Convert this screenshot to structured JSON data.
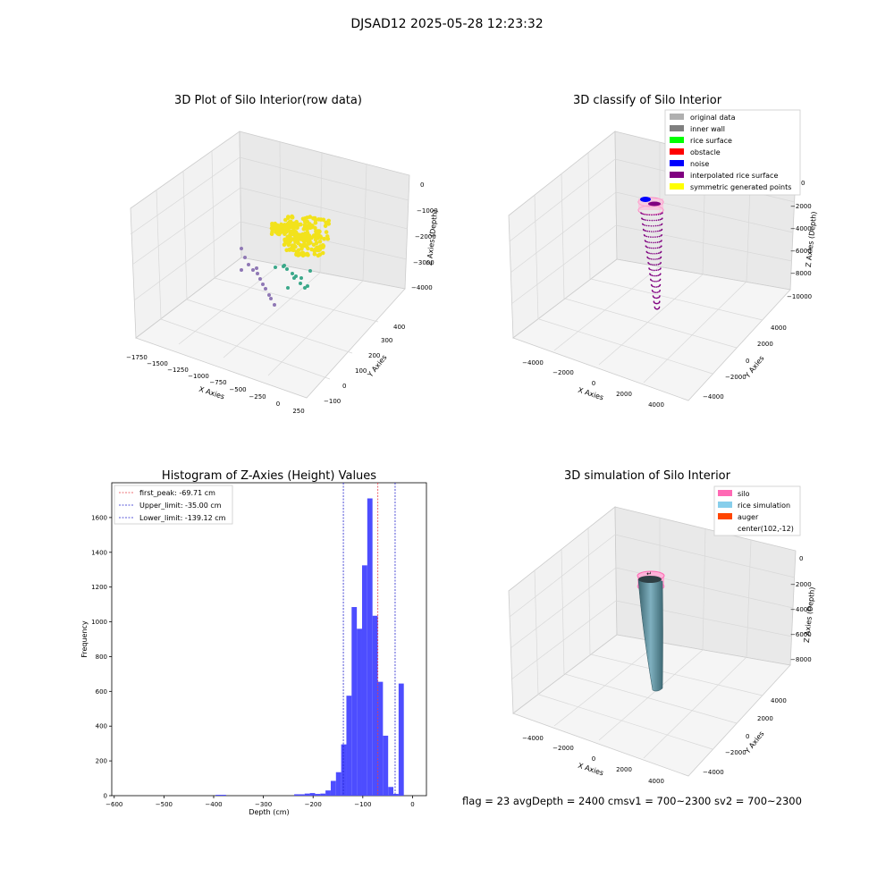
{
  "figure_title": "DJSAD12 2025-05-28 12:23:32",
  "status_line": "flag = 23  avgDepth = 2400 cmsv1 = 700~2300  sv2 = 700~2300",
  "chart_data": [
    {
      "type": "scatter",
      "title": "3D Plot of Silo Interior(row data)",
      "xlabel": "X Axies",
      "ylabel": "Y Axies",
      "zlabel": "Z Axies (Depth)",
      "xticks": [
        "−1750",
        "−1500",
        "−1250",
        "−1000",
        "−750",
        "−500",
        "−250",
        "0",
        "250"
      ],
      "yticks": [
        "−100",
        "0",
        "100",
        "200",
        "300",
        "400"
      ],
      "zticks": [
        "0",
        "−1000",
        "−2000",
        "−3000",
        "−4000"
      ],
      "xlim": [
        -1750,
        250
      ],
      "ylim": [
        -100,
        400
      ],
      "zlim": [
        -4500,
        0
      ],
      "grid": true,
      "colors": {
        "dense_cluster": "#f2e21c",
        "mid": "#3ba88a",
        "far": "#8f78b5"
      }
    },
    {
      "type": "scatter",
      "title": "3D classify of Silo Interior",
      "xlabel": "X Axies",
      "ylabel": "Y Axies",
      "zlabel": "Z Axies (Depth)",
      "xticks": [
        "−4000",
        "−2000",
        "0",
        "2000",
        "4000"
      ],
      "yticks": [
        "−4000",
        "−2000",
        "0",
        "2000",
        "4000"
      ],
      "zticks": [
        "0",
        "−2000",
        "−4000",
        "−6000",
        "−8000",
        "−10000"
      ],
      "legend_position": "top-right",
      "legend": [
        {
          "label": "original data",
          "color": "#b0b0b0"
        },
        {
          "label": "inner wall",
          "color": "#7f7f7f"
        },
        {
          "label": "rice surface",
          "color": "#00ff00"
        },
        {
          "label": "obstacle",
          "color": "#ff0000"
        },
        {
          "label": "noise",
          "color": "#0000ff"
        },
        {
          "label": "interpolated rice surface",
          "color": "#800080"
        },
        {
          "label": "symmetric generated points",
          "color": "#ffff00"
        }
      ],
      "grid": true
    },
    {
      "type": "bar",
      "title": "Histogram of Z-Axies (Height) Values",
      "xlabel": "Depth (cm)",
      "ylabel": "Frequency",
      "xlim": [
        -605,
        28
      ],
      "ylim": [
        0,
        1800
      ],
      "xticks": [
        -600,
        -500,
        -400,
        -300,
        -200,
        -100,
        0
      ],
      "xtick_labels": [
        "−600",
        "−500",
        "−400",
        "−300",
        "−200",
        "−100",
        "0"
      ],
      "yticks": [
        0,
        200,
        400,
        600,
        800,
        1000,
        1200,
        1400,
        1600
      ],
      "bin_width": 10.5,
      "bins": [
        {
          "left": -396,
          "count": 5
        },
        {
          "left": -385.5,
          "count": 5
        },
        {
          "left": -238,
          "count": 8
        },
        {
          "left": -227.5,
          "count": 8
        },
        {
          "left": -217,
          "count": 12
        },
        {
          "left": -206.5,
          "count": 15
        },
        {
          "left": -196,
          "count": 10
        },
        {
          "left": -185.5,
          "count": 12
        },
        {
          "left": -175,
          "count": 30
        },
        {
          "left": -164.5,
          "count": 85
        },
        {
          "left": -154,
          "count": 135
        },
        {
          "left": -143.5,
          "count": 295
        },
        {
          "left": -133,
          "count": 575
        },
        {
          "left": -122.5,
          "count": 1085
        },
        {
          "left": -112,
          "count": 960
        },
        {
          "left": -101.5,
          "count": 1325
        },
        {
          "left": -91,
          "count": 1710
        },
        {
          "left": -80.5,
          "count": 1035
        },
        {
          "left": -70,
          "count": 655
        },
        {
          "left": -59.5,
          "count": 345
        },
        {
          "left": -49,
          "count": 50
        },
        {
          "left": -38.5,
          "count": 10
        },
        {
          "left": -28,
          "count": 645
        }
      ],
      "bar_color": "#4d4dff",
      "vlines": [
        {
          "label": "first_peak: -69.71 cm",
          "x": -69.71,
          "color": "#e8404a"
        },
        {
          "label": "Upper_limit: -35.00 cm",
          "x": -35.0,
          "color": "#2222cc"
        },
        {
          "label": "Lower_limit: -139.12 cm",
          "x": -139.12,
          "color": "#2222cc"
        }
      ],
      "legend_position": "top-left"
    },
    {
      "type": "area",
      "title": "3D simulation of Silo Interior",
      "xlabel": "X Axies",
      "ylabel": "Y Axies",
      "zlabel": "Z Axies (Depth)",
      "xticks": [
        "−4000",
        "−2000",
        "0",
        "2000",
        "4000"
      ],
      "yticks": [
        "−4000",
        "−2000",
        "0",
        "2000",
        "4000"
      ],
      "zticks": [
        "0",
        "−2000",
        "−4000",
        "−6000",
        "−8000"
      ],
      "legend_position": "top-right",
      "legend": [
        {
          "label": "silo",
          "color": "#ff69b4"
        },
        {
          "label": "rice simulation",
          "color": "#87ceeb"
        },
        {
          "label": "auger",
          "color": "#ff4500"
        },
        {
          "label": "center(102,-12)",
          "color": ""
        }
      ],
      "grid": true
    }
  ]
}
